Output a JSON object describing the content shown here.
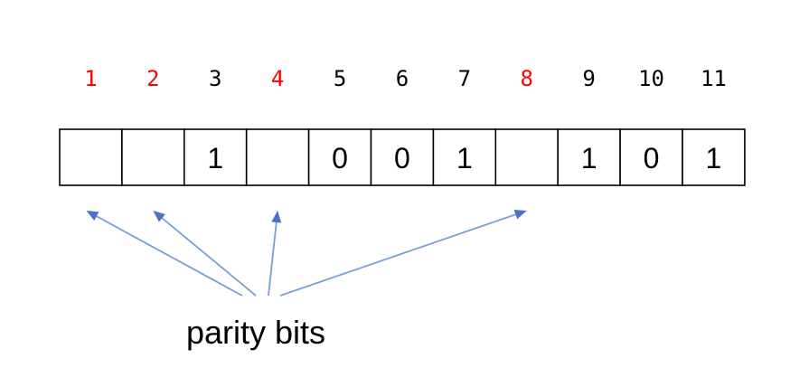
{
  "colors": {
    "parity": "#ff0000",
    "data": "#000000",
    "arrow": "#7a9fd4",
    "arrow_head": "#4a72c4",
    "border": "#000000"
  },
  "bits": [
    {
      "position": "1",
      "value": "",
      "is_parity": true
    },
    {
      "position": "2",
      "value": "",
      "is_parity": true
    },
    {
      "position": "3",
      "value": "1",
      "is_parity": false
    },
    {
      "position": "4",
      "value": "",
      "is_parity": true
    },
    {
      "position": "5",
      "value": "0",
      "is_parity": false
    },
    {
      "position": "6",
      "value": "0",
      "is_parity": false
    },
    {
      "position": "7",
      "value": "1",
      "is_parity": false
    },
    {
      "position": "8",
      "value": "",
      "is_parity": true
    },
    {
      "position": "9",
      "value": "1",
      "is_parity": false
    },
    {
      "position": "10",
      "value": "0",
      "is_parity": false
    },
    {
      "position": "11",
      "value": "1",
      "is_parity": false
    }
  ],
  "arrows_to_positions": [
    "1",
    "2",
    "4",
    "8"
  ],
  "caption": "parity bits"
}
